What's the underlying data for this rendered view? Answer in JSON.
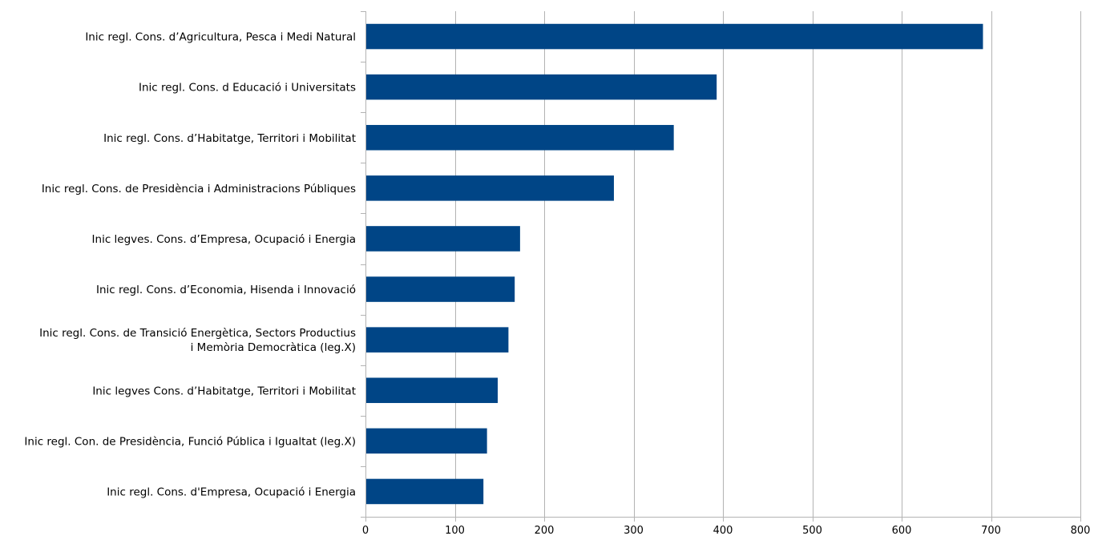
{
  "colors": {
    "bar": "#004586",
    "grid": "#b3b3b3",
    "axis": "#b3b3b3",
    "text": "#000000",
    "background": "#ffffff"
  },
  "chart_data": {
    "type": "bar",
    "orientation": "horizontal",
    "title": "",
    "xlabel": "",
    "ylabel": "",
    "xlim": [
      0,
      800
    ],
    "xticks": [
      0,
      100,
      200,
      300,
      400,
      500,
      600,
      700,
      800
    ],
    "grid": true,
    "legend": "none",
    "categories": [
      [
        "Inic regl. Cons. d’Agricultura, Pesca i Medi Natural"
      ],
      [
        "Inic regl. Cons. d Educació i Universitats"
      ],
      [
        "Inic regl. Cons. d’Habitatge, Territori i Mobilitat"
      ],
      [
        "Inic regl. Cons. de Presidència i Administracions Públiques"
      ],
      [
        "Inic legves. Cons. d’Empresa, Ocupació i Energia"
      ],
      [
        "Inic regl. Cons. d’Economia, Hisenda i Innovació"
      ],
      [
        "Inic regl. Cons. de Transició Energètica,  Sectors Productius",
        "i Memòria Democràtica (leg.X)"
      ],
      [
        "Inic legves Cons. d’Habitatge, Territori i Mobilitat"
      ],
      [
        "Inic regl. Con. de Presidència, Funció Pública i Igualtat (leg.X)"
      ],
      [
        "Inic regl. Cons. d'Empresa, Ocupació i Energia"
      ]
    ],
    "values": [
      691,
      393,
      345,
      278,
      173,
      167,
      160,
      148,
      136,
      132
    ]
  }
}
